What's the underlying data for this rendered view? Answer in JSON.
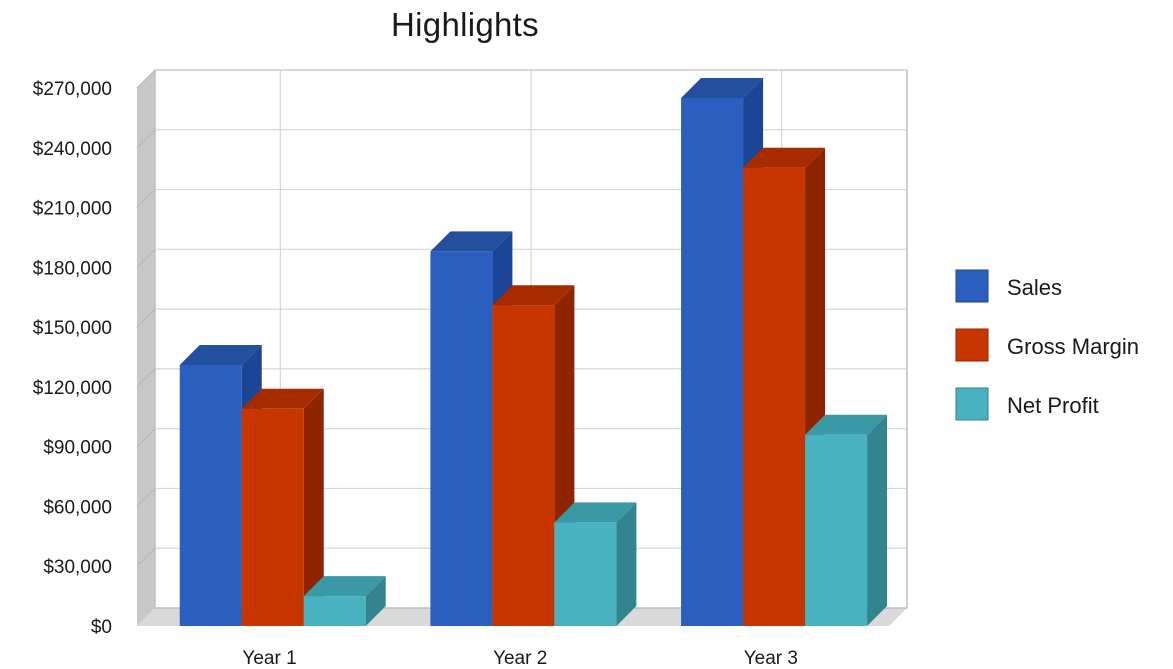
{
  "chart_data": {
    "type": "bar",
    "title": "Highlights",
    "xlabel": "",
    "ylabel": "",
    "categories": [
      "Year 1",
      "Year 2",
      "Year 3"
    ],
    "series": [
      {
        "name": "Sales",
        "values": [
          131000,
          188000,
          265000
        ],
        "color": "#2a5fc0",
        "side_color": "#1b4597",
        "top_color": "#244f9f"
      },
      {
        "name": "Gross Margin",
        "values": [
          109000,
          161000,
          230000
        ],
        "color": "#c83600",
        "side_color": "#8e2400",
        "top_color": "#a62c00"
      },
      {
        "name": "Net Profit",
        "values": [
          15000,
          52000,
          96000
        ],
        "color": "#48b2c0",
        "side_color": "#32848f",
        "top_color": "#3a99a5"
      }
    ],
    "ylim": [
      0,
      270000
    ],
    "yticks": [
      "$0",
      "$30,000",
      "$60,000",
      "$90,000",
      "$120,000",
      "$150,000",
      "$180,000",
      "$210,000",
      "$240,000",
      "$270,000"
    ],
    "ytick_values": [
      0,
      30000,
      60000,
      90000,
      120000,
      150000,
      180000,
      210000,
      240000,
      270000
    ],
    "grid": true,
    "legend_position": "right",
    "style": "3d-clustered-column",
    "wall_color": "#c8c8c8",
    "floor_color": "#d9d9d9",
    "grid_color": "#d6d6d6"
  }
}
